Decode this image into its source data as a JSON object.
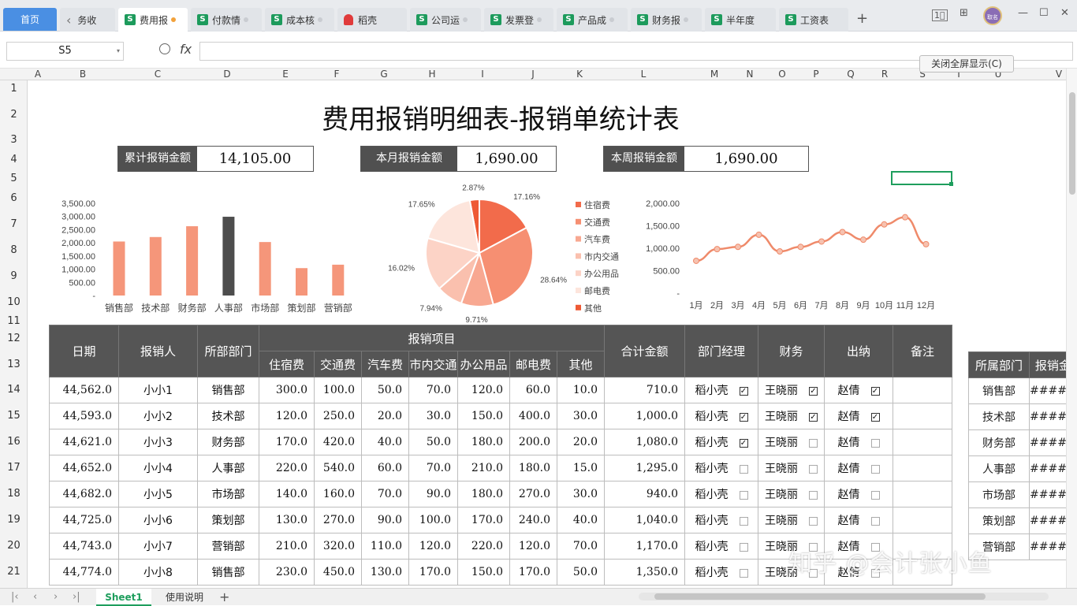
{
  "tabs": {
    "home": "首页",
    "items": [
      {
        "label": "务收",
        "icon": "back-arrow-icon"
      },
      {
        "label": "费用报",
        "icon": "sheet-icon",
        "active": true
      },
      {
        "label": "付款情",
        "icon": "sheet-icon"
      },
      {
        "label": "成本核",
        "icon": "sheet-icon"
      },
      {
        "label": "稻壳",
        "icon": "docer-icon"
      },
      {
        "label": "公司运",
        "icon": "sheet-icon"
      },
      {
        "label": "发票登",
        "icon": "sheet-icon"
      },
      {
        "label": "产品成",
        "icon": "sheet-icon"
      },
      {
        "label": "财务报",
        "icon": "sheet-icon"
      },
      {
        "label": "半年度",
        "icon": "sheet-icon"
      },
      {
        "label": "工资表",
        "icon": "sheet-icon"
      }
    ],
    "avatar_text": "取名"
  },
  "formula_bar": {
    "name_box": "S5",
    "fx_label": "fx",
    "formula": ""
  },
  "fullscreen_button": "关闭全屏显示(C)",
  "columns": [
    "A",
    "B",
    "C",
    "D",
    "E",
    "F",
    "G",
    "H",
    "I",
    "J",
    "K",
    "L",
    "M",
    "N",
    "O",
    "P",
    "Q",
    "R",
    "S",
    "T",
    "U",
    "V"
  ],
  "rows": [
    "1",
    "2",
    "3",
    "4",
    "5",
    "6",
    "7",
    "8",
    "9",
    "10",
    "11",
    "12",
    "13",
    "14",
    "15",
    "16",
    "17",
    "18",
    "19",
    "20",
    "21"
  ],
  "title": "费用报销明细表-报销单统计表",
  "kpis": [
    {
      "label": "累计报销金额",
      "value": "14,105.00"
    },
    {
      "label": "本月报销金额",
      "value": "1,690.00"
    },
    {
      "label": "本周报销金额",
      "value": "1,690.00"
    }
  ],
  "chart_data": [
    {
      "type": "bar",
      "categories": [
        "销售部",
        "技术部",
        "财务部",
        "人事部",
        "市场部",
        "策划部",
        "营销部"
      ],
      "values": [
        2050,
        2220,
        2630,
        2990,
        2030,
        1040,
        1170
      ],
      "y_ticks": [
        "-",
        "500.00",
        "1,000.00",
        "1,500.00",
        "2,000.00",
        "2,500.00",
        "3,000.00",
        "3,500.00"
      ],
      "ylim": [
        0,
        3500
      ],
      "highlight_index": 3,
      "colors": {
        "bar": "#f5967a",
        "highlight": "#4d4d4d"
      }
    },
    {
      "type": "pie",
      "slices": [
        {
          "name": "住宿费",
          "value": 17.16,
          "label": "17.16%",
          "color": "#f26b4b"
        },
        {
          "name": "交通费",
          "value": 28.64,
          "label": "28.64%",
          "color": "#f68f72"
        },
        {
          "name": "汽车费",
          "value": 9.71,
          "label": "9.71%",
          "color": "#f8a891"
        },
        {
          "name": "市内交通",
          "value": 7.94,
          "label": "7.94%",
          "color": "#fac0ae"
        },
        {
          "name": "办公用品",
          "value": 16.02,
          "label": "16.02%",
          "color": "#fcd3c6"
        },
        {
          "name": "邮电费",
          "value": 17.65,
          "label": "17.65%",
          "color": "#fde5dc"
        },
        {
          "name": "其他",
          "value": 2.87,
          "label": "2.87%",
          "color": "#ee5a35"
        }
      ]
    },
    {
      "type": "line",
      "x": [
        "1月",
        "2月",
        "3月",
        "4月",
        "5月",
        "6月",
        "7月",
        "8月",
        "9月",
        "10月",
        "11月",
        "12月"
      ],
      "values": [
        720,
        980,
        1030,
        1300,
        930,
        1030,
        1150,
        1360,
        1190,
        1530,
        1690,
        1090
      ],
      "y_ticks": [
        "-",
        "500.00",
        "1,000.00",
        "1,500.00",
        "2,000.00"
      ],
      "ylim": [
        0,
        2000
      ],
      "colors": {
        "line": "#ef8a6a",
        "marker": "#f6c2b0"
      }
    }
  ],
  "table": {
    "headers": {
      "date": "日期",
      "person": "报销人",
      "dept": "所部部门",
      "group": "报销项目",
      "items": [
        "住宿费",
        "交通费",
        "汽车费",
        "市内交通",
        "办公用品",
        "邮电费",
        "其他"
      ],
      "total": "合计金额",
      "manager": "部门经理",
      "finance": "财务",
      "cashier": "出纳",
      "note": "备注"
    },
    "rows": [
      {
        "date": "44,562.0",
        "person": "小小1",
        "dept": "销售部",
        "items": [
          "300.0",
          "100.0",
          "50.0",
          "70.0",
          "120.0",
          "60.0",
          "10.0"
        ],
        "total": "710.0",
        "manager": "稻小壳",
        "m_check": true,
        "finance": "王晓丽",
        "f_check": true,
        "cashier": "赵倩",
        "c_check": true
      },
      {
        "date": "44,593.0",
        "person": "小小2",
        "dept": "技术部",
        "items": [
          "120.0",
          "250.0",
          "20.0",
          "30.0",
          "150.0",
          "400.0",
          "30.0"
        ],
        "total": "1,000.0",
        "manager": "稻小壳",
        "m_check": true,
        "finance": "王晓丽",
        "f_check": true,
        "cashier": "赵倩",
        "c_check": true
      },
      {
        "date": "44,621.0",
        "person": "小小3",
        "dept": "财务部",
        "items": [
          "170.0",
          "420.0",
          "40.0",
          "50.0",
          "180.0",
          "200.0",
          "20.0"
        ],
        "total": "1,080.0",
        "manager": "稻小壳",
        "m_check": true,
        "finance": "王晓丽",
        "f_check": false,
        "cashier": "赵倩",
        "c_check": false
      },
      {
        "date": "44,652.0",
        "person": "小小4",
        "dept": "人事部",
        "items": [
          "220.0",
          "540.0",
          "60.0",
          "70.0",
          "210.0",
          "180.0",
          "15.0"
        ],
        "total": "1,295.0",
        "manager": "稻小壳",
        "m_check": false,
        "finance": "王晓丽",
        "f_check": false,
        "cashier": "赵倩",
        "c_check": false
      },
      {
        "date": "44,682.0",
        "person": "小小5",
        "dept": "市场部",
        "items": [
          "140.0",
          "160.0",
          "70.0",
          "90.0",
          "180.0",
          "270.0",
          "30.0"
        ],
        "total": "940.0",
        "manager": "稻小壳",
        "m_check": false,
        "finance": "王晓丽",
        "f_check": false,
        "cashier": "赵倩",
        "c_check": false
      },
      {
        "date": "44,725.0",
        "person": "小小6",
        "dept": "策划部",
        "items": [
          "130.0",
          "270.0",
          "90.0",
          "100.0",
          "170.0",
          "240.0",
          "40.0"
        ],
        "total": "1,040.0",
        "manager": "稻小壳",
        "m_check": false,
        "finance": "王晓丽",
        "f_check": false,
        "cashier": "赵倩",
        "c_check": false
      },
      {
        "date": "44,743.0",
        "person": "小小7",
        "dept": "营销部",
        "items": [
          "210.0",
          "320.0",
          "110.0",
          "120.0",
          "220.0",
          "120.0",
          "70.0"
        ],
        "total": "1,170.0",
        "manager": "稻小壳",
        "m_check": false,
        "finance": "王晓丽",
        "f_check": false,
        "cashier": "赵倩",
        "c_check": false
      },
      {
        "date": "44,774.0",
        "person": "小小8",
        "dept": "销售部",
        "items": [
          "230.0",
          "450.0",
          "130.0",
          "170.0",
          "150.0",
          "170.0",
          "50.0"
        ],
        "total": "1,350.0",
        "manager": "稻小壳",
        "m_check": false,
        "finance": "王晓丽",
        "f_check": false,
        "cashier": "赵倩",
        "c_check": false
      }
    ]
  },
  "side_table": {
    "headers": [
      "所属部门",
      "报销金"
    ],
    "rows": [
      [
        "销售部",
        "#####"
      ],
      [
        "技术部",
        "#####"
      ],
      [
        "财务部",
        "#####"
      ],
      [
        "人事部",
        "#####"
      ],
      [
        "市场部",
        "#####"
      ],
      [
        "策划部",
        "#####"
      ],
      [
        "营销部",
        "#####"
      ]
    ]
  },
  "sheets": [
    "Sheet1",
    "使用说明"
  ],
  "watermark": "知乎 @会计张小鱼"
}
